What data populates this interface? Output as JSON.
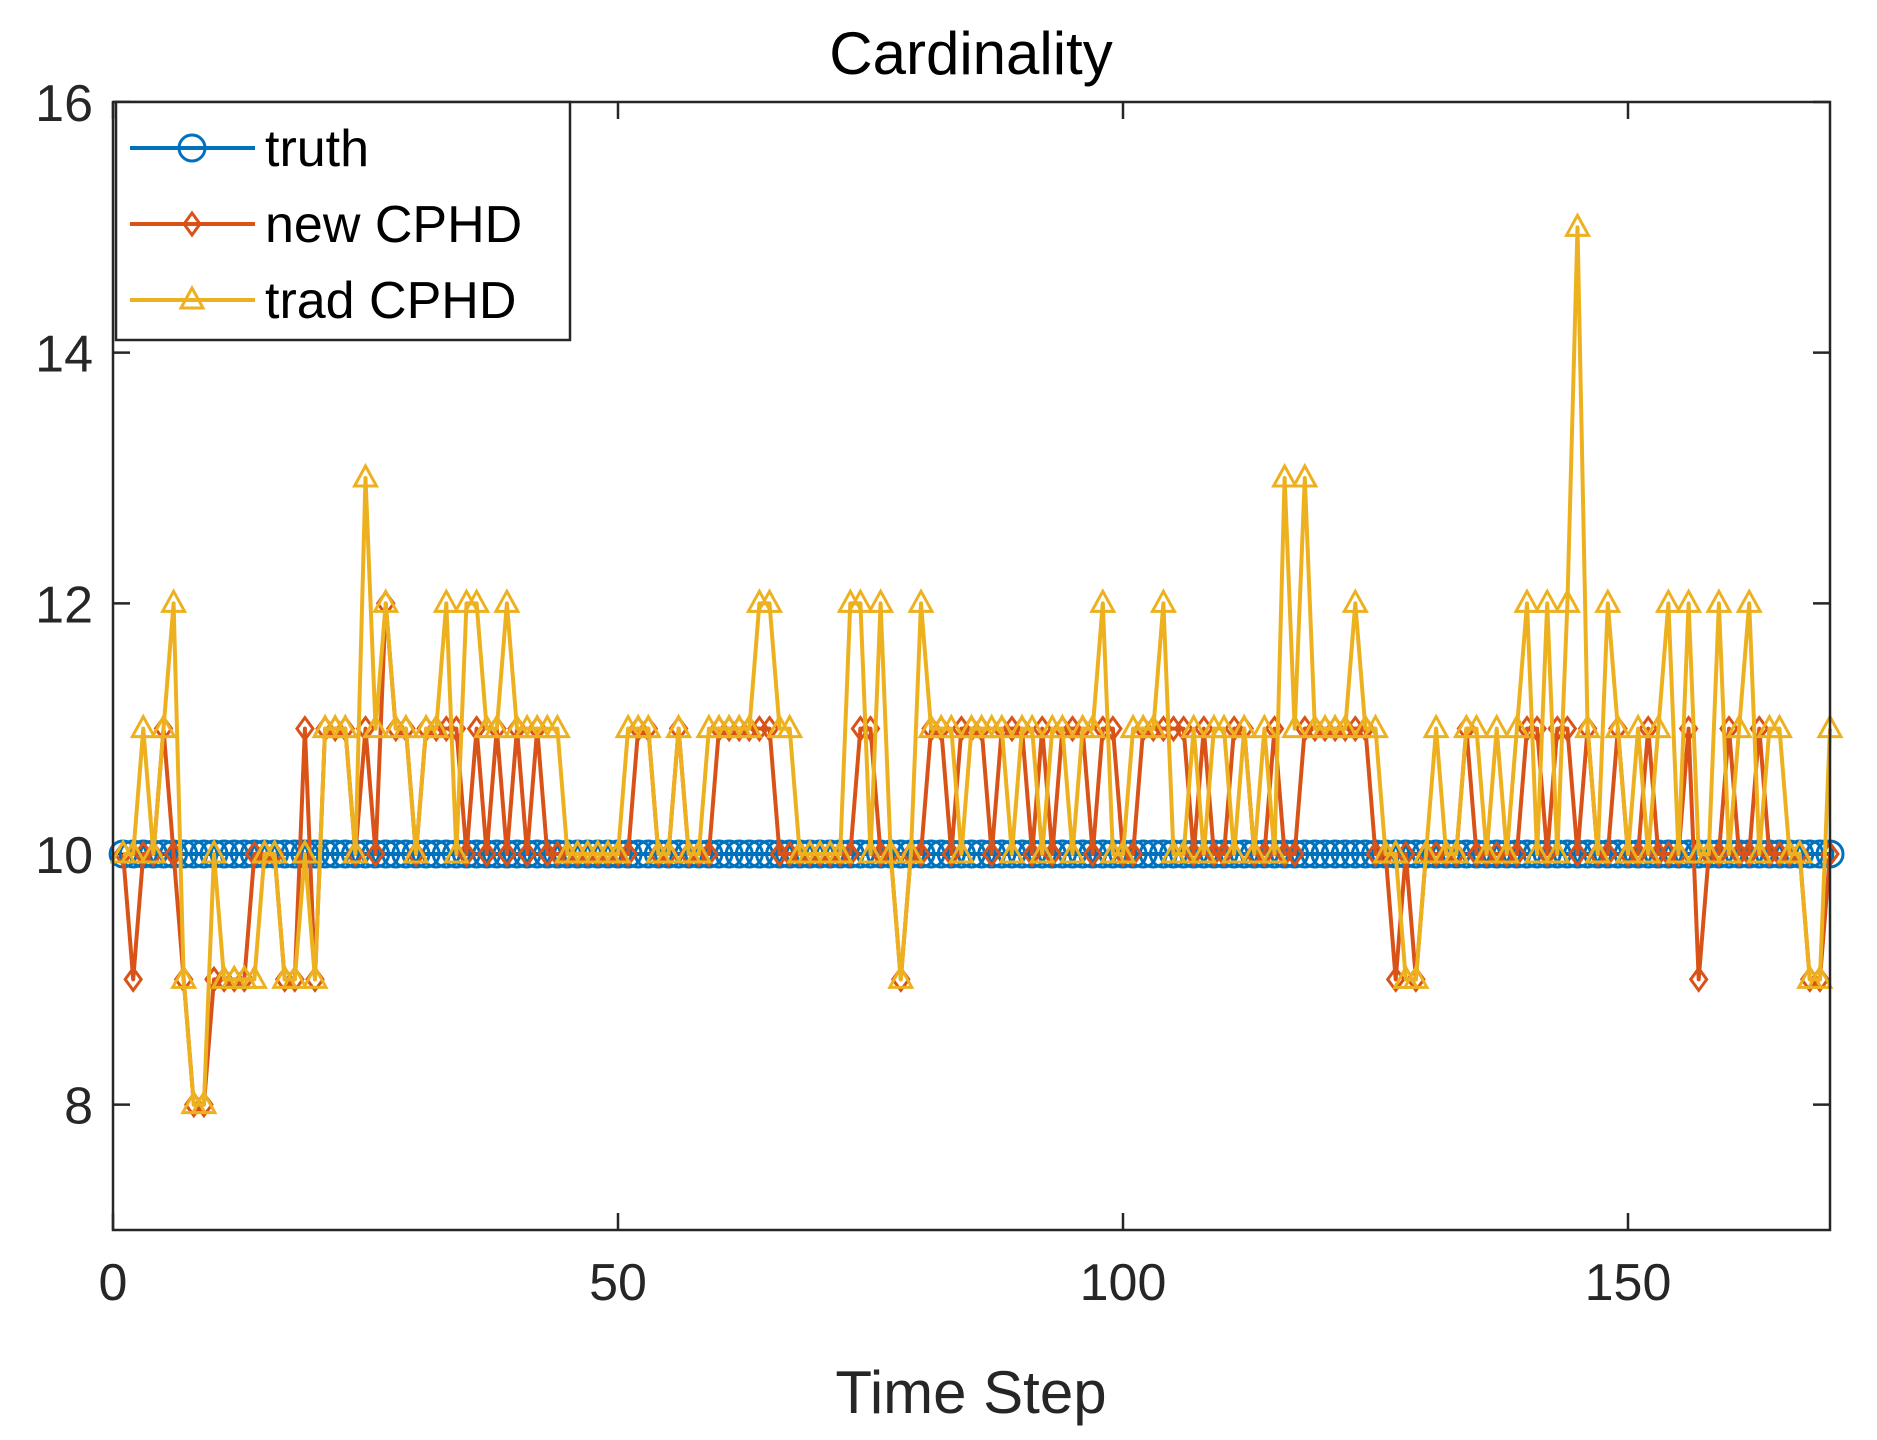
{
  "chart_data": {
    "type": "line",
    "title": "Cardinality",
    "xlabel": "Time Step",
    "ylabel": "",
    "xlim": [
      0,
      170
    ],
    "ylim": [
      7,
      16
    ],
    "xticks": [
      0,
      50,
      100,
      150
    ],
    "yticks": [
      8,
      10,
      12,
      14,
      16
    ],
    "legend_position": "top-left",
    "x": [
      1,
      2,
      3,
      4,
      5,
      6,
      7,
      8,
      9,
      10,
      11,
      12,
      13,
      14,
      15,
      16,
      17,
      18,
      19,
      20,
      21,
      22,
      23,
      24,
      25,
      26,
      27,
      28,
      29,
      30,
      31,
      32,
      33,
      34,
      35,
      36,
      37,
      38,
      39,
      40,
      41,
      42,
      43,
      44,
      45,
      46,
      47,
      48,
      49,
      50,
      51,
      52,
      53,
      54,
      55,
      56,
      57,
      58,
      59,
      60,
      61,
      62,
      63,
      64,
      65,
      66,
      67,
      68,
      69,
      70,
      71,
      72,
      73,
      74,
      75,
      76,
      77,
      78,
      79,
      80,
      81,
      82,
      83,
      84,
      85,
      86,
      87,
      88,
      89,
      90,
      91,
      92,
      93,
      94,
      95,
      96,
      97,
      98,
      99,
      100,
      101,
      102,
      103,
      104,
      105,
      106,
      107,
      108,
      109,
      110,
      111,
      112,
      113,
      114,
      115,
      116,
      117,
      118,
      119,
      120,
      121,
      122,
      123,
      124,
      125,
      126,
      127,
      128,
      129,
      130,
      131,
      132,
      133,
      134,
      135,
      136,
      137,
      138,
      139,
      140,
      141,
      142,
      143,
      144,
      145,
      146,
      147,
      148,
      149,
      150,
      151,
      152,
      153,
      154,
      155,
      156,
      157,
      158,
      159,
      160,
      161,
      162,
      163,
      164,
      165,
      166,
      167,
      168,
      169,
      170
    ],
    "series": [
      {
        "name": "truth",
        "color": "#0072BD",
        "marker": "circle",
        "values": [
          10,
          10,
          10,
          10,
          10,
          10,
          10,
          10,
          10,
          10,
          10,
          10,
          10,
          10,
          10,
          10,
          10,
          10,
          10,
          10,
          10,
          10,
          10,
          10,
          10,
          10,
          10,
          10,
          10,
          10,
          10,
          10,
          10,
          10,
          10,
          10,
          10,
          10,
          10,
          10,
          10,
          10,
          10,
          10,
          10,
          10,
          10,
          10,
          10,
          10,
          10,
          10,
          10,
          10,
          10,
          10,
          10,
          10,
          10,
          10,
          10,
          10,
          10,
          10,
          10,
          10,
          10,
          10,
          10,
          10,
          10,
          10,
          10,
          10,
          10,
          10,
          10,
          10,
          10,
          10,
          10,
          10,
          10,
          10,
          10,
          10,
          10,
          10,
          10,
          10,
          10,
          10,
          10,
          10,
          10,
          10,
          10,
          10,
          10,
          10,
          10,
          10,
          10,
          10,
          10,
          10,
          10,
          10,
          10,
          10,
          10,
          10,
          10,
          10,
          10,
          10,
          10,
          10,
          10,
          10,
          10,
          10,
          10,
          10,
          10,
          10,
          10,
          10,
          10,
          10,
          10,
          10,
          10,
          10,
          10,
          10,
          10,
          10,
          10,
          10,
          10,
          10,
          10,
          10,
          10,
          10,
          10,
          10,
          10,
          10,
          10,
          10,
          10,
          10,
          10,
          10,
          10,
          10,
          10,
          10,
          10,
          10,
          10,
          10,
          10,
          10,
          10,
          10,
          10,
          10
        ]
      },
      {
        "name": "new CPHD",
        "color": "#D95319",
        "marker": "diamond",
        "values": [
          10,
          9,
          10,
          10,
          11,
          10,
          9,
          8,
          8,
          9,
          9,
          9,
          9,
          10,
          10,
          10,
          9,
          9,
          11,
          9,
          11,
          11,
          11,
          10,
          11,
          10,
          12,
          11,
          11,
          10,
          11,
          11,
          11,
          11,
          10,
          11,
          10,
          11,
          10,
          11,
          10,
          11,
          10,
          10,
          10,
          10,
          10,
          10,
          10,
          10,
          10,
          11,
          11,
          10,
          10,
          11,
          10,
          10,
          10,
          11,
          11,
          11,
          11,
          11,
          11,
          10,
          10,
          10,
          10,
          10,
          10,
          10,
          10,
          11,
          11,
          10,
          10,
          9,
          10,
          10,
          11,
          11,
          10,
          11,
          11,
          11,
          10,
          11,
          11,
          11,
          10,
          11,
          10,
          11,
          11,
          11,
          10,
          11,
          11,
          10,
          10,
          11,
          11,
          11,
          11,
          11,
          10,
          11,
          10,
          10,
          11,
          11,
          10,
          10,
          11,
          10,
          10,
          11,
          11,
          11,
          11,
          11,
          11,
          11,
          10,
          10,
          9,
          10,
          9,
          10,
          10,
          10,
          10,
          11,
          10,
          10,
          10,
          10,
          10,
          11,
          11,
          10,
          11,
          11,
          10,
          11,
          10,
          10,
          11,
          10,
          10,
          11,
          10,
          10,
          10,
          11,
          9,
          10,
          10,
          11,
          10,
          10,
          11,
          10,
          10,
          10,
          10,
          9,
          9,
          10
        ]
      },
      {
        "name": "trad CPHD",
        "color": "#EDB120",
        "marker": "triangle",
        "values": [
          10,
          10,
          11,
          10,
          11,
          12,
          9,
          8,
          8,
          10,
          9,
          9,
          9,
          9,
          10,
          10,
          9,
          9,
          10,
          9,
          11,
          11,
          11,
          10,
          13,
          11,
          12,
          11,
          11,
          10,
          11,
          11,
          12,
          10,
          12,
          12,
          11,
          11,
          12,
          11,
          11,
          11,
          11,
          11,
          10,
          10,
          10,
          10,
          10,
          10,
          11,
          11,
          11,
          10,
          10,
          11,
          10,
          10,
          11,
          11,
          11,
          11,
          11,
          12,
          12,
          11,
          11,
          10,
          10,
          10,
          10,
          10,
          12,
          12,
          10,
          12,
          10,
          9,
          10,
          12,
          11,
          11,
          11,
          10,
          11,
          11,
          11,
          11,
          10,
          11,
          11,
          10,
          11,
          11,
          10,
          11,
          11,
          12,
          10,
          10,
          11,
          11,
          11,
          12,
          10,
          10,
          11,
          10,
          11,
          11,
          10,
          11,
          10,
          11,
          10,
          13,
          11,
          13,
          11,
          11,
          11,
          11,
          12,
          11,
          11,
          10,
          10,
          9,
          9,
          10,
          11,
          10,
          10,
          11,
          11,
          10,
          11,
          10,
          11,
          12,
          10,
          12,
          10,
          12,
          15,
          11,
          10,
          12,
          11,
          10,
          11,
          10,
          11,
          12,
          10,
          12,
          10,
          10,
          12,
          10,
          11,
          12,
          10,
          11,
          11,
          10,
          10,
          9,
          9,
          11
        ]
      }
    ]
  }
}
